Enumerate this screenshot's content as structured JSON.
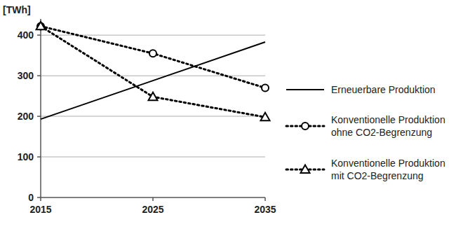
{
  "chart_data": {
    "type": "line",
    "y_label": "[TWh]",
    "x": [
      2015,
      2025,
      2035
    ],
    "xlim": [
      2015,
      2035
    ],
    "xticks": [
      2015,
      2025,
      2035
    ],
    "ylim": [
      0,
      440
    ],
    "yticks": [
      0,
      100,
      200,
      300,
      400
    ],
    "grid": true,
    "legend": "right",
    "series": [
      {
        "name": "Erneuerbare Produktion",
        "color": "#000000",
        "values": [
          193,
          288,
          383
        ],
        "marker": "none",
        "line_style": "solid"
      },
      {
        "name": "Konventionelle Produktion ohne CO2-Begrenzung",
        "color": "#000000",
        "values": [
          422,
          355,
          270
        ],
        "marker": "circle",
        "line_style": "dotted"
      },
      {
        "name": "Konventionelle Produktion mit CO2-Begrenzung",
        "color": "#000000",
        "values": [
          422,
          248,
          198
        ],
        "marker": "triangle",
        "line_style": "dotted"
      }
    ]
  }
}
